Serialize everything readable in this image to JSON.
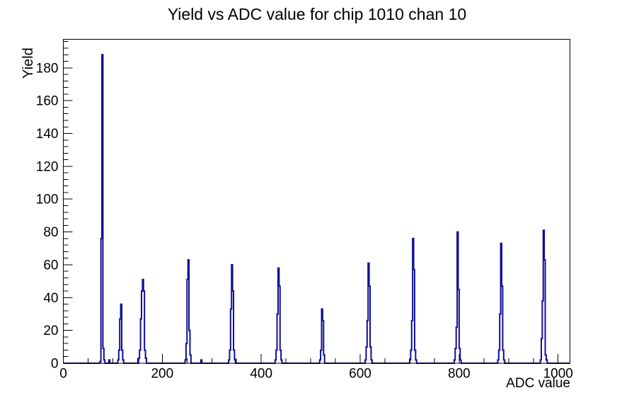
{
  "chart_data": {
    "type": "bar",
    "subtype": "step-histogram-outline",
    "title": "Yield vs ADC value for chip 1010 chan 10",
    "xlabel": "ADC value",
    "ylabel": "Yield",
    "xlim": [
      0,
      1024
    ],
    "ylim": [
      0,
      197.4
    ],
    "x_major_ticks": [
      0,
      200,
      400,
      600,
      800,
      1000
    ],
    "x_minor_step": 50,
    "y_major_ticks": [
      0,
      20,
      40,
      60,
      80,
      100,
      120,
      140,
      160,
      180
    ],
    "y_minor_step": 4,
    "grid": false,
    "legend": false,
    "line_color": "#0f0f96",
    "frame_color": "#000000",
    "background_color": "#ffffff",
    "bin_width": 2,
    "bins": [
      [
        74,
        1
      ],
      [
        76,
        76
      ],
      [
        78,
        188
      ],
      [
        80,
        9
      ],
      [
        82,
        2
      ],
      [
        92,
        2
      ],
      [
        110,
        2
      ],
      [
        112,
        8
      ],
      [
        114,
        27
      ],
      [
        116,
        36
      ],
      [
        118,
        8
      ],
      [
        120,
        2
      ],
      [
        152,
        3
      ],
      [
        154,
        8
      ],
      [
        156,
        27
      ],
      [
        158,
        44
      ],
      [
        160,
        51
      ],
      [
        162,
        44
      ],
      [
        164,
        8
      ],
      [
        166,
        3
      ],
      [
        246,
        2
      ],
      [
        248,
        12
      ],
      [
        250,
        51
      ],
      [
        252,
        63
      ],
      [
        254,
        20
      ],
      [
        256,
        5
      ],
      [
        278,
        2
      ],
      [
        334,
        2
      ],
      [
        336,
        8
      ],
      [
        338,
        33
      ],
      [
        340,
        60
      ],
      [
        342,
        44
      ],
      [
        344,
        8
      ],
      [
        346,
        2
      ],
      [
        428,
        2
      ],
      [
        430,
        8
      ],
      [
        432,
        30
      ],
      [
        434,
        58
      ],
      [
        436,
        47
      ],
      [
        438,
        8
      ],
      [
        440,
        2
      ],
      [
        518,
        2
      ],
      [
        520,
        8
      ],
      [
        522,
        33
      ],
      [
        524,
        26
      ],
      [
        526,
        5
      ],
      [
        610,
        2
      ],
      [
        612,
        10
      ],
      [
        614,
        26
      ],
      [
        616,
        61
      ],
      [
        618,
        47
      ],
      [
        620,
        10
      ],
      [
        622,
        2
      ],
      [
        700,
        2
      ],
      [
        702,
        8
      ],
      [
        704,
        26
      ],
      [
        706,
        76
      ],
      [
        708,
        57
      ],
      [
        710,
        8
      ],
      [
        712,
        2
      ],
      [
        790,
        2
      ],
      [
        792,
        9
      ],
      [
        794,
        22
      ],
      [
        796,
        80
      ],
      [
        798,
        45
      ],
      [
        800,
        9
      ],
      [
        802,
        2
      ],
      [
        878,
        2
      ],
      [
        880,
        8
      ],
      [
        882,
        30
      ],
      [
        884,
        73
      ],
      [
        886,
        47
      ],
      [
        888,
        8
      ],
      [
        890,
        2
      ],
      [
        964,
        2
      ],
      [
        966,
        15
      ],
      [
        968,
        38
      ],
      [
        970,
        81
      ],
      [
        972,
        63
      ],
      [
        974,
        5
      ],
      [
        976,
        2
      ]
    ],
    "peaks": [
      {
        "adc": 78,
        "yield": 188
      },
      {
        "adc": 116,
        "yield": 36
      },
      {
        "adc": 160,
        "yield": 51
      },
      {
        "adc": 252,
        "yield": 63
      },
      {
        "adc": 340,
        "yield": 60
      },
      {
        "adc": 434,
        "yield": 58
      },
      {
        "adc": 522,
        "yield": 33
      },
      {
        "adc": 616,
        "yield": 61
      },
      {
        "adc": 706,
        "yield": 76
      },
      {
        "adc": 796,
        "yield": 80
      },
      {
        "adc": 884,
        "yield": 73
      },
      {
        "adc": 970,
        "yield": 81
      }
    ]
  }
}
